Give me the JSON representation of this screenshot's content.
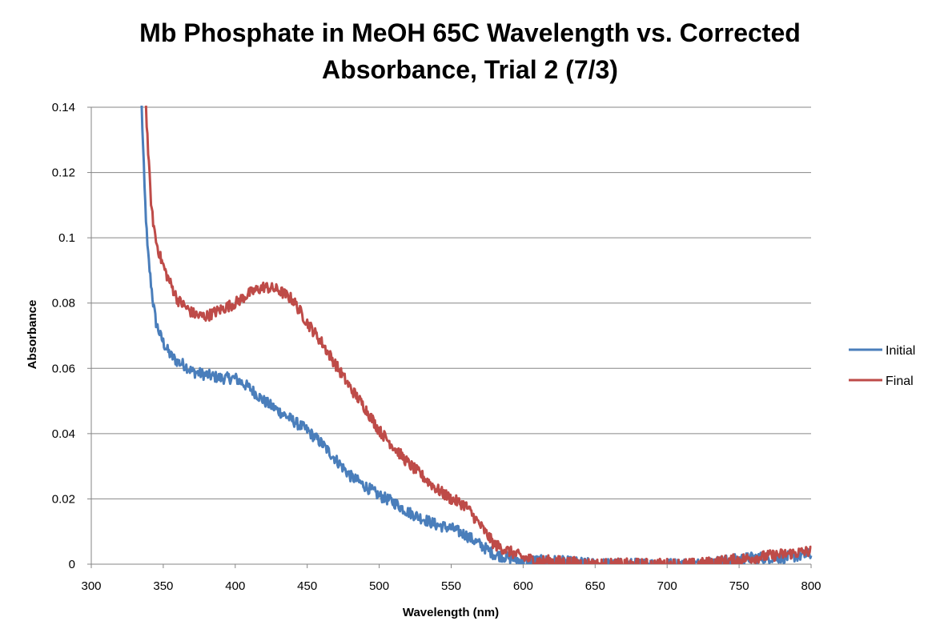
{
  "chart_data": {
    "type": "line",
    "title": "Mb Phosphate in MeOH 65C Wavelength vs. Corrected Absorbance, Trial 2 (7/3)",
    "title_lines": [
      "Mb Phosphate in MeOH 65C Wavelength vs. Corrected",
      "Absorbance, Trial 2 (7/3)"
    ],
    "xlabel": "Wavelength (nm)",
    "ylabel": "Absorbance",
    "xlim": [
      300,
      800
    ],
    "ylim": [
      0,
      0.14
    ],
    "x_ticks": [
      "300",
      "350",
      "400",
      "450",
      "500",
      "550",
      "600",
      "650",
      "700",
      "750",
      "800"
    ],
    "y_ticks": [
      "0",
      "0.02",
      "0.04",
      "0.06",
      "0.08",
      "0.1",
      "0.12",
      "0.14"
    ],
    "grid": "horizontal",
    "legend_position": "right",
    "series": [
      {
        "name": "Initial",
        "color": "#4a7ebb",
        "x": [
          335,
          337,
          339,
          341,
          343,
          345,
          348,
          351,
          355,
          360,
          365,
          370,
          380,
          390,
          400,
          410,
          420,
          430,
          440,
          450,
          460,
          470,
          480,
          490,
          500,
          510,
          520,
          530,
          540,
          550,
          560,
          570,
          580,
          590,
          600,
          610,
          620,
          650,
          700,
          720,
          740,
          760,
          780,
          800
        ],
        "y": [
          0.14,
          0.115,
          0.097,
          0.088,
          0.08,
          0.074,
          0.07,
          0.067,
          0.064,
          0.062,
          0.061,
          0.059,
          0.058,
          0.057,
          0.057,
          0.054,
          0.05,
          0.047,
          0.044,
          0.041,
          0.037,
          0.032,
          0.027,
          0.024,
          0.021,
          0.019,
          0.016,
          0.014,
          0.012,
          0.011,
          0.009,
          0.006,
          0.003,
          0.002,
          0.001,
          0.001,
          0.001,
          0.0,
          0.0,
          0.0,
          0.001,
          0.002,
          0.002,
          0.003
        ]
      },
      {
        "name": "Final",
        "color": "#be4b48",
        "x": [
          338,
          340,
          342,
          345,
          348,
          352,
          356,
          360,
          365,
          370,
          375,
          380,
          390,
          400,
          410,
          420,
          430,
          440,
          450,
          460,
          470,
          480,
          490,
          500,
          510,
          520,
          530,
          540,
          550,
          560,
          570,
          580,
          590,
          600,
          610,
          620,
          650,
          700,
          720,
          740,
          760,
          780,
          800
        ],
        "y": [
          0.14,
          0.122,
          0.108,
          0.099,
          0.094,
          0.089,
          0.085,
          0.081,
          0.079,
          0.077,
          0.076,
          0.076,
          0.078,
          0.08,
          0.083,
          0.085,
          0.084,
          0.081,
          0.074,
          0.068,
          0.061,
          0.054,
          0.048,
          0.041,
          0.036,
          0.031,
          0.027,
          0.023,
          0.02,
          0.018,
          0.012,
          0.006,
          0.004,
          0.002,
          0.001,
          0.001,
          0.0,
          0.0,
          0.0,
          0.001,
          0.002,
          0.003,
          0.004
        ]
      }
    ]
  }
}
